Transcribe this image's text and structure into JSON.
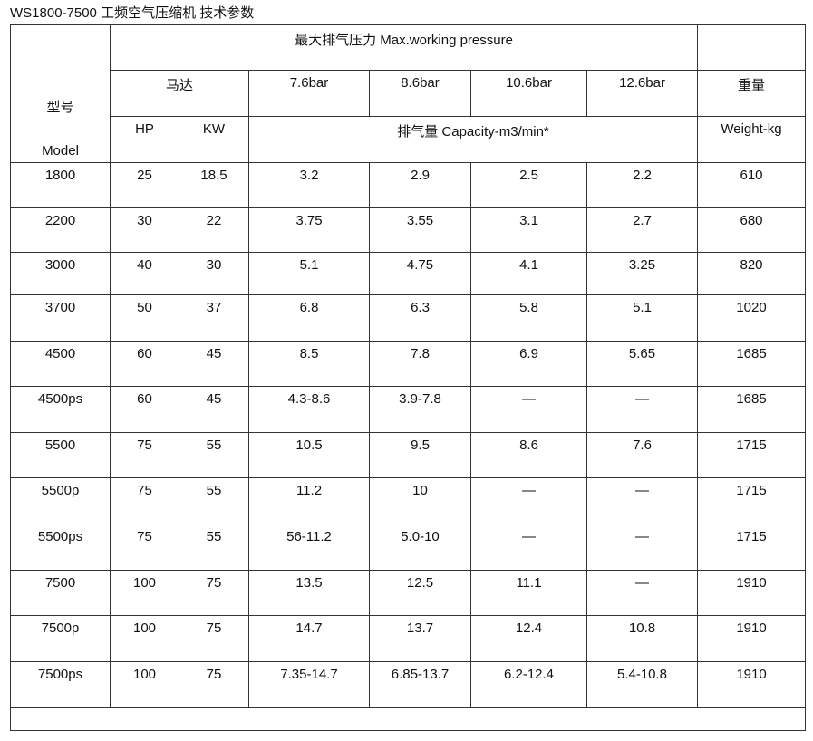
{
  "title": "WS1800-7500 工频空气压缩机  技术参数",
  "table": {
    "header": {
      "pressure": "最大排气压力 Max.working pressure",
      "model_cn": "型号",
      "model_en": "Model",
      "motor": "马达",
      "pressures": [
        "7.6bar",
        "8.6bar",
        "10.6bar",
        "12.6bar"
      ],
      "weight_cn": "重量",
      "hp": "HP",
      "kw": "KW",
      "capacity": "排气量 Capacity-m3/min*",
      "weight_en": "Weight-kg"
    },
    "rows": [
      [
        "1800",
        "25",
        "18.5",
        "3.2",
        "2.9",
        "2.5",
        "2.2",
        "610"
      ],
      [
        "2200",
        "30",
        "22",
        "3.75",
        "3.55",
        "3.1",
        "2.7",
        "680"
      ],
      [
        "3000",
        "40",
        "30",
        "5.1",
        "4.75",
        "4.1",
        "3.25",
        "820"
      ],
      [
        "3700",
        "50",
        "37",
        "6.8",
        "6.3",
        "5.8",
        "5.1",
        "1020"
      ],
      [
        "4500",
        "60",
        "45",
        "8.5",
        "7.8",
        "6.9",
        "5.65",
        "1685"
      ],
      [
        "4500ps",
        "60",
        "45",
        "4.3-8.6",
        "3.9-7.8",
        "—",
        "—",
        "1685"
      ],
      [
        "5500",
        "75",
        "55",
        "10.5",
        "9.5",
        "8.6",
        "7.6",
        "1715"
      ],
      [
        "5500p",
        "75",
        "55",
        "11.2",
        "10",
        "—",
        "—",
        "1715"
      ],
      [
        "5500ps",
        "75",
        "55",
        "56-11.2",
        "5.0-10",
        "—",
        "—",
        "1715"
      ],
      [
        "7500",
        "100",
        "75",
        "13.5",
        "12.5",
        "11.1",
        "—",
        "1910"
      ],
      [
        "7500p",
        "100",
        "75",
        "14.7",
        "13.7",
        "12.4",
        "10.8",
        "1910"
      ],
      [
        "7500ps",
        "100",
        "75",
        "7.35-14.7",
        "6.85-13.7",
        "6.2-12.4",
        "5.4-10.8",
        "1910"
      ]
    ]
  }
}
